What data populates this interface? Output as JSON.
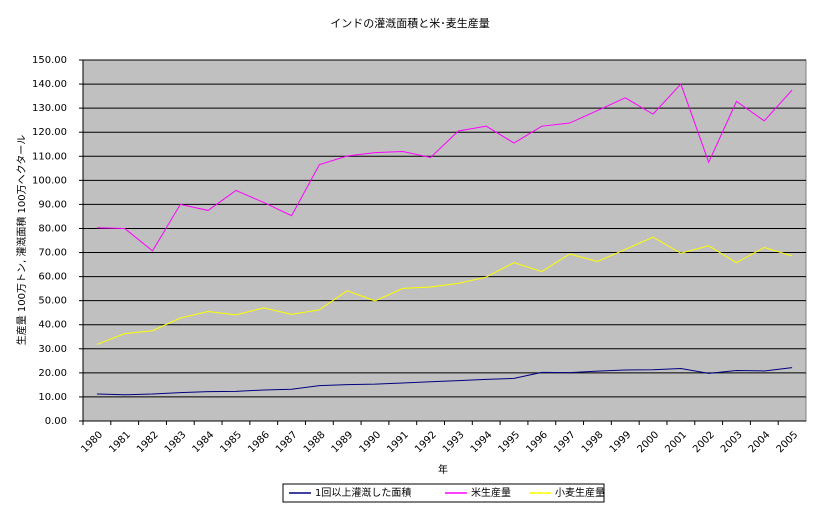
{
  "chart_data": {
    "type": "line",
    "title": "インドの灌漑面積と米･麦生産量",
    "x_label": "年",
    "y_label": "生産量 100万トン, 灌漑面積 100万ヘクタール",
    "categories": [
      "1980",
      "1981",
      "1982",
      "1983",
      "1984",
      "1985",
      "1986",
      "1987",
      "1988",
      "1989",
      "1990",
      "1991",
      "1992",
      "1993",
      "1994",
      "1995",
      "1996",
      "1997",
      "1998",
      "1999",
      "2000",
      "2001",
      "2002",
      "2003",
      "2004",
      "2005"
    ],
    "series": [
      {
        "name": "1回以上灌漑した面積",
        "color": "#000080",
        "values": [
          11.2,
          10.9,
          11.2,
          11.8,
          12.2,
          12.3,
          12.9,
          13.2,
          14.7,
          15.1,
          15.3,
          15.8,
          16.3,
          16.8,
          17.3,
          17.7,
          20.2,
          20.1,
          20.7,
          21.2,
          21.3,
          21.8,
          19.8,
          21.0,
          20.8,
          22.2
        ]
      },
      {
        "name": "米生産量",
        "color": "#ff00ff",
        "values": [
          80.3,
          80.0,
          70.7,
          90.0,
          87.5,
          95.8,
          90.8,
          85.3,
          106.5,
          110.1,
          111.5,
          112.0,
          109.5,
          120.5,
          122.5,
          115.5,
          122.5,
          123.8,
          129.0,
          134.3,
          127.5,
          140.0,
          107.5,
          132.8,
          124.7,
          137.5
        ]
      },
      {
        "name": "小麦生産量",
        "color": "#ffff00",
        "values": [
          31.8,
          36.3,
          37.5,
          42.8,
          45.5,
          44.1,
          47.0,
          44.3,
          46.2,
          54.1,
          49.9,
          55.1,
          55.7,
          57.2,
          59.8,
          65.8,
          62.1,
          69.4,
          66.3,
          71.3,
          76.4,
          69.7,
          72.8,
          65.8,
          72.1,
          68.6
        ]
      }
    ],
    "ylim": [
      0,
      150
    ],
    "yticks": [
      {
        "value": 0,
        "label": "0.00"
      },
      {
        "value": 10,
        "label": "10.00"
      },
      {
        "value": 20,
        "label": "20.00"
      },
      {
        "value": 30,
        "label": "30.00"
      },
      {
        "value": 40,
        "label": "40.00"
      },
      {
        "value": 50,
        "label": "50.00"
      },
      {
        "value": 60,
        "label": "60.00"
      },
      {
        "value": 70,
        "label": "70.00"
      },
      {
        "value": 80,
        "label": "80.00"
      },
      {
        "value": 90,
        "label": "90.00"
      },
      {
        "value": 100,
        "label": "100.00"
      },
      {
        "value": 110,
        "label": "110.00"
      },
      {
        "value": 120,
        "label": "120.00"
      },
      {
        "value": 130,
        "label": "130.00"
      },
      {
        "value": 140,
        "label": "140.00"
      },
      {
        "value": 150,
        "label": "150.00"
      }
    ],
    "grid": true,
    "legend": "bottom",
    "background": "#c0c0c0"
  }
}
